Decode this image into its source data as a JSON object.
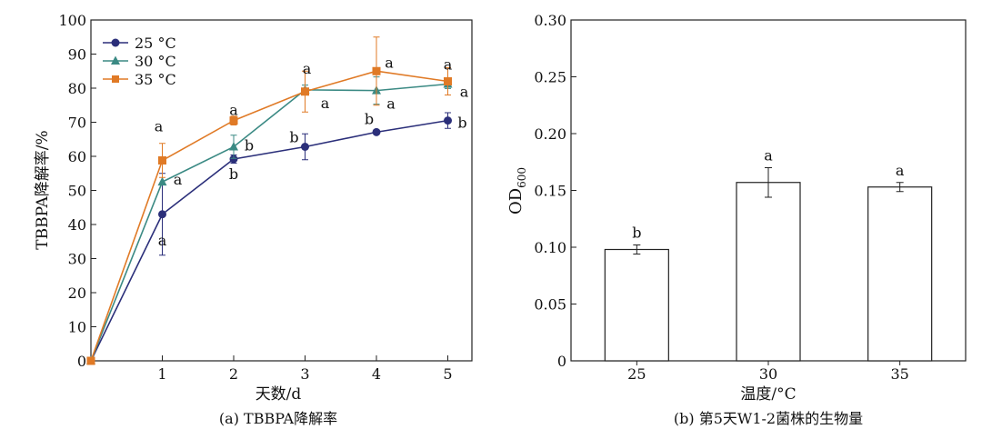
{
  "chart_data": [
    {
      "type": "line",
      "caption": "(a) TBBPA降解率",
      "xlabel": "天数/d",
      "ylabel": "TBBPA降解率/%",
      "x": [
        0,
        1,
        2,
        3,
        4,
        5
      ],
      "xticks": [
        "1",
        "2",
        "3",
        "4",
        "5"
      ],
      "ylim": [
        0,
        100
      ],
      "yticks": [
        "0",
        "10",
        "20",
        "30",
        "40",
        "50",
        "60",
        "70",
        "80",
        "90",
        "100"
      ],
      "legend_position": "top-left",
      "series": [
        {
          "name": "25 °C",
          "color": "#2b2f7a",
          "marker": "circle",
          "values": [
            0,
            43.0,
            59.2,
            62.8,
            67.1,
            70.5
          ],
          "errors": [
            0,
            12.0,
            1.2,
            3.8,
            0.6,
            2.3
          ],
          "labels": [
            "",
            "a",
            "b",
            "b",
            "b",
            "b"
          ]
        },
        {
          "name": "30 °C",
          "color": "#3b8a84",
          "marker": "triangle",
          "values": [
            0,
            52.5,
            62.8,
            79.5,
            79.3,
            81.2
          ],
          "errors": [
            0,
            0,
            3.4,
            1.4,
            4.0,
            1.3
          ],
          "labels": [
            "",
            "a",
            "b",
            "a",
            "a",
            "a"
          ]
        },
        {
          "name": "35 °C",
          "color": "#e07a26",
          "marker": "square",
          "values": [
            0,
            58.8,
            70.5,
            79.0,
            85.0,
            82.0
          ],
          "errors": [
            0,
            5.0,
            1.3,
            6.0,
            10.0,
            4.0
          ],
          "labels": [
            "",
            "a",
            "a",
            "a",
            "a",
            "a"
          ]
        }
      ]
    },
    {
      "type": "bar",
      "caption": "(b) 第5天W1-2菌株的生物量",
      "xlabel": "温度/°C",
      "ylabel_main": "OD",
      "ylabel_sub": "600",
      "categories": [
        "25",
        "30",
        "35"
      ],
      "values": [
        0.098,
        0.157,
        0.153
      ],
      "errors": [
        0.004,
        0.013,
        0.004
      ],
      "labels": [
        "b",
        "a",
        "a"
      ],
      "ylim": [
        0,
        0.3
      ],
      "yticks": [
        "0",
        "0.05",
        "0.10",
        "0.15",
        "0.20",
        "0.25",
        "0.30"
      ],
      "bar_color": "#ffffff"
    }
  ]
}
